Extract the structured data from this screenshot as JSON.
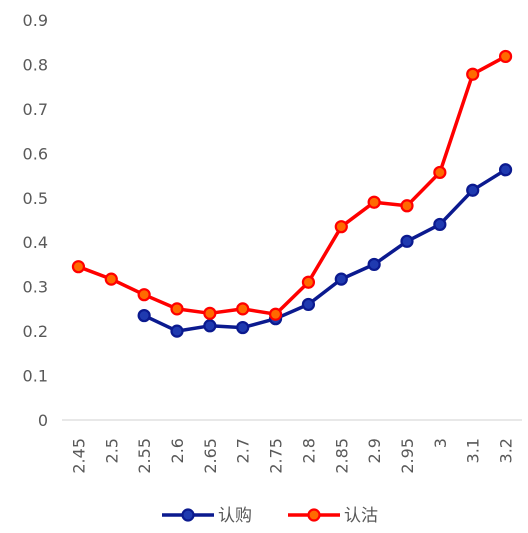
{
  "chart_data": {
    "type": "line",
    "title": "",
    "xlabel": "",
    "ylabel": "",
    "categories": [
      "2.45",
      "2.5",
      "2.55",
      "2.6",
      "2.65",
      "2.7",
      "2.75",
      "2.8",
      "2.85",
      "2.9",
      "2.95",
      "3",
      "3.1",
      "3.2"
    ],
    "y_ticks": [
      "0",
      "0.1",
      "0.2",
      "0.3",
      "0.4",
      "0.5",
      "0.6",
      "0.7",
      "0.8",
      "0.9"
    ],
    "ylim": [
      0,
      0.9
    ],
    "grid": false,
    "legend_position": "bottom",
    "series": [
      {
        "name": "认购",
        "color": "#0b1a8f",
        "marker_color": "#1f3ab0",
        "values": [
          null,
          null,
          0.235,
          0.2,
          0.212,
          0.208,
          0.228,
          0.26,
          0.317,
          0.35,
          0.402,
          0.44,
          0.517,
          0.563
        ]
      },
      {
        "name": "认沽",
        "color": "#ff0000",
        "marker_color": "#ff6a00",
        "values": [
          0.345,
          0.317,
          0.282,
          0.25,
          0.24,
          0.25,
          0.238,
          0.31,
          0.435,
          0.49,
          0.482,
          0.557,
          0.778,
          0.818
        ]
      }
    ]
  }
}
